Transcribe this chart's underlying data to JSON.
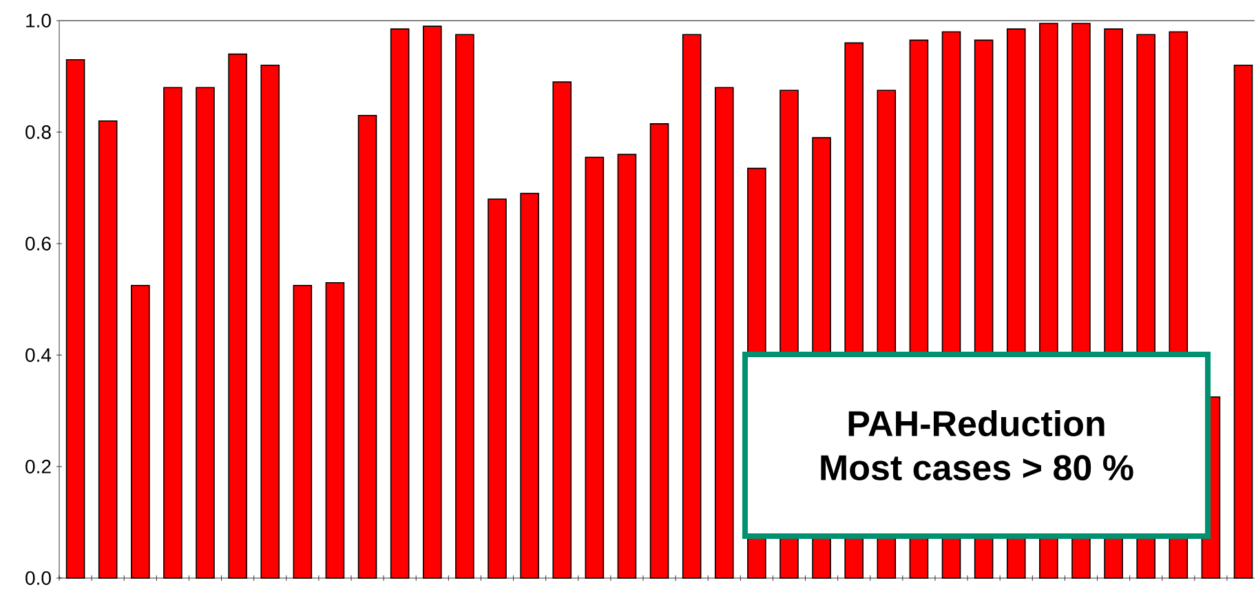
{
  "chart_data": {
    "type": "bar",
    "categories": [
      null,
      null,
      null,
      null,
      null,
      null,
      null,
      null,
      null,
      null,
      null,
      null,
      null,
      null,
      null,
      null,
      null,
      null,
      null,
      null,
      null,
      null,
      null,
      null,
      null,
      null,
      null,
      null,
      null,
      null,
      null,
      null,
      null,
      null,
      null,
      null,
      null
    ],
    "values": [
      0.93,
      0.82,
      0.525,
      0.88,
      0.88,
      0.94,
      0.92,
      0.525,
      0.53,
      0.83,
      0.985,
      0.99,
      0.975,
      0.68,
      0.69,
      0.89,
      0.755,
      0.76,
      0.815,
      0.975,
      0.88,
      0.735,
      0.875,
      0.79,
      0.96,
      0.875,
      0.965,
      0.98,
      0.965,
      0.985,
      0.995,
      0.995,
      0.985,
      0.975,
      0.98,
      0.325,
      0.92
    ],
    "color": "#ff0000",
    "ylim": [
      0,
      1
    ],
    "yticks": [
      {
        "value": 0,
        "label": "0.0"
      },
      {
        "value": 0.2,
        "label": "0.2"
      },
      {
        "value": 0.4,
        "label": "0.4"
      },
      {
        "value": 0.6,
        "label": "0.6"
      },
      {
        "value": 0.8,
        "label": "0.8"
      },
      {
        "value": 1,
        "label": "1.0"
      }
    ],
    "grid": false,
    "annotations": [
      "PAH-Reduction",
      "Most cases > 80 %"
    ]
  }
}
